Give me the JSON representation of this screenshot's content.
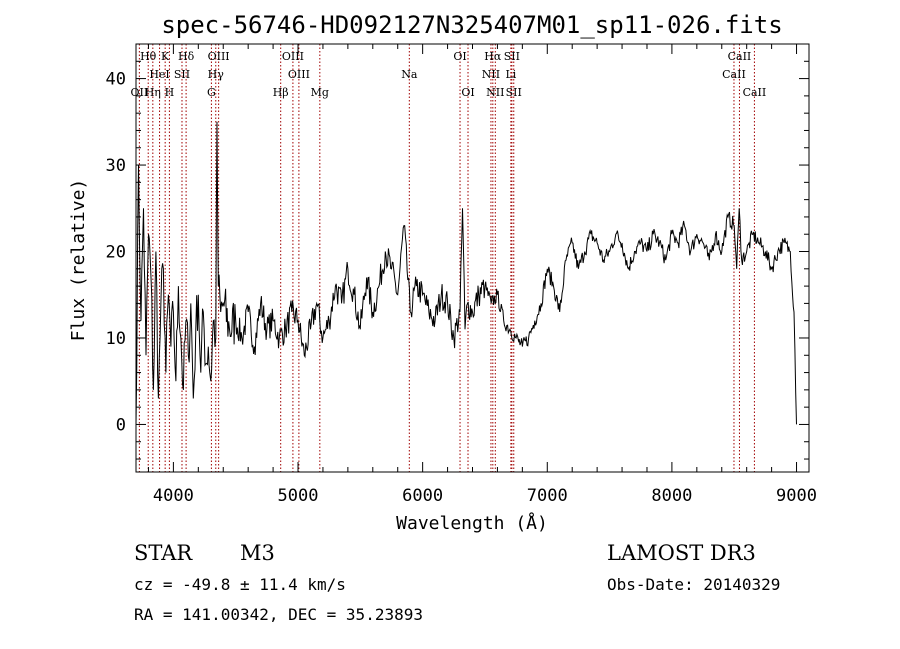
{
  "chart_data": {
    "type": "line",
    "title": "spec-56746-HD092127N325407M01_sp11-026.fits",
    "xlabel": "Wavelength (Å)",
    "ylabel": "Flux (relative)",
    "xlim": [
      3700,
      9100
    ],
    "ylim": [
      -5.5,
      44
    ],
    "xticks": [
      4000,
      5000,
      6000,
      7000,
      8000,
      9000
    ],
    "yticks": [
      0,
      10,
      20,
      30,
      40
    ],
    "x_minor_step": 200,
    "y_minor_step": 2,
    "series": [
      {
        "name": "flux",
        "x": [
          3700,
          3720,
          3740,
          3760,
          3780,
          3800,
          3820,
          3840,
          3860,
          3880,
          3900,
          3920,
          3940,
          3960,
          3980,
          4000,
          4020,
          4040,
          4060,
          4080,
          4100,
          4120,
          4140,
          4160,
          4180,
          4200,
          4220,
          4240,
          4260,
          4280,
          4300,
          4320,
          4340,
          4350,
          4360,
          4380,
          4400,
          4450,
          4500,
          4550,
          4600,
          4650,
          4700,
          4750,
          4800,
          4850,
          4900,
          4950,
          5000,
          5050,
          5100,
          5150,
          5200,
          5250,
          5300,
          5350,
          5400,
          5450,
          5500,
          5550,
          5600,
          5650,
          5700,
          5750,
          5800,
          5850,
          5900,
          5950,
          6000,
          6050,
          6100,
          6150,
          6200,
          6250,
          6300,
          6320,
          6340,
          6360,
          6400,
          6450,
          6500,
          6550,
          6600,
          6650,
          6700,
          6750,
          6800,
          6850,
          6900,
          6950,
          7000,
          7050,
          7100,
          7150,
          7200,
          7250,
          7300,
          7350,
          7400,
          7450,
          7500,
          7550,
          7600,
          7650,
          7700,
          7750,
          7800,
          7850,
          7900,
          7950,
          8000,
          8050,
          8100,
          8150,
          8200,
          8250,
          8300,
          8350,
          8400,
          8450,
          8500,
          8520,
          8540,
          8560,
          8600,
          8650,
          8700,
          8750,
          8800,
          8850,
          8900,
          8950,
          8980,
          9000
        ],
        "y": [
          0,
          30,
          12,
          25,
          8,
          22,
          17,
          4,
          20,
          3,
          14,
          18,
          6,
          15,
          9,
          13,
          5,
          16,
          10,
          4,
          12,
          8,
          14,
          3,
          11,
          15,
          6,
          13,
          7,
          9,
          5,
          12,
          10,
          35,
          16,
          13,
          14,
          11,
          12,
          10,
          13,
          9,
          14,
          11,
          12,
          10,
          11,
          13,
          12,
          8,
          11,
          14,
          10,
          12,
          16,
          14,
          18,
          15,
          11,
          17,
          13,
          16,
          20,
          18,
          15,
          23,
          13,
          16,
          15,
          13,
          12,
          15,
          14,
          10,
          13,
          25,
          11,
          14,
          13,
          15,
          16,
          14,
          15,
          12,
          11,
          10,
          9,
          10,
          12,
          14,
          18,
          16,
          13,
          19,
          21,
          18,
          20,
          22,
          21,
          19,
          20,
          22,
          21,
          18,
          20,
          21,
          20,
          22,
          21,
          19,
          22,
          21,
          23,
          20,
          22,
          21,
          19,
          22,
          20,
          24,
          23,
          18,
          25,
          19,
          20,
          22,
          21,
          20,
          18,
          20,
          21,
          20,
          13,
          0
        ]
      }
    ],
    "lines": [
      {
        "name": "Hθ",
        "x": 3798,
        "row": 0
      },
      {
        "name": "K",
        "x": 3934,
        "row": 0
      },
      {
        "name": "Hδ",
        "x": 4102,
        "row": 0
      },
      {
        "name": "OIII",
        "x": 4363,
        "row": 0
      },
      {
        "name": "OIII",
        "x": 4959,
        "row": 0
      },
      {
        "name": "OI",
        "x": 6300,
        "row": 0
      },
      {
        "name": "Hα",
        "x": 6563,
        "row": 0
      },
      {
        "name": "SII",
        "x": 6716,
        "row": 0
      },
      {
        "name": "CaII",
        "x": 8542,
        "row": 0
      },
      {
        "name": "HeI",
        "x": 3889,
        "row": 1
      },
      {
        "name": "SII",
        "x": 4069,
        "row": 1
      },
      {
        "name": "Hγ",
        "x": 4340,
        "row": 1
      },
      {
        "name": "OIII",
        "x": 5007,
        "row": 1
      },
      {
        "name": "Na",
        "x": 5893,
        "row": 1
      },
      {
        "name": "NII",
        "x": 6548,
        "row": 1
      },
      {
        "name": "Li",
        "x": 6708,
        "row": 1
      },
      {
        "name": "CaII",
        "x": 8498,
        "row": 1
      },
      {
        "name": "OII",
        "x": 3727,
        "row": 2
      },
      {
        "name": "Hη",
        "x": 3835,
        "row": 2
      },
      {
        "name": "H",
        "x": 3968,
        "row": 2
      },
      {
        "name": "G",
        "x": 4305,
        "row": 2
      },
      {
        "name": "Hβ",
        "x": 4861,
        "row": 2
      },
      {
        "name": "Mg",
        "x": 5175,
        "row": 2
      },
      {
        "name": "OI",
        "x": 6364,
        "row": 2
      },
      {
        "name": "NII",
        "x": 6583,
        "row": 2
      },
      {
        "name": "SII",
        "x": 6731,
        "row": 2
      },
      {
        "name": "CaII",
        "x": 8662,
        "row": 2
      }
    ],
    "line_color": "#a00000"
  },
  "info": {
    "class": "STAR",
    "subclass": "M3",
    "survey": "LAMOST DR3",
    "cz": "cz = -49.8 ± 11.4 km/s",
    "obsdate": "Obs-Date: 20140329",
    "radec": "RA = 141.00342, DEC =  35.23893"
  }
}
